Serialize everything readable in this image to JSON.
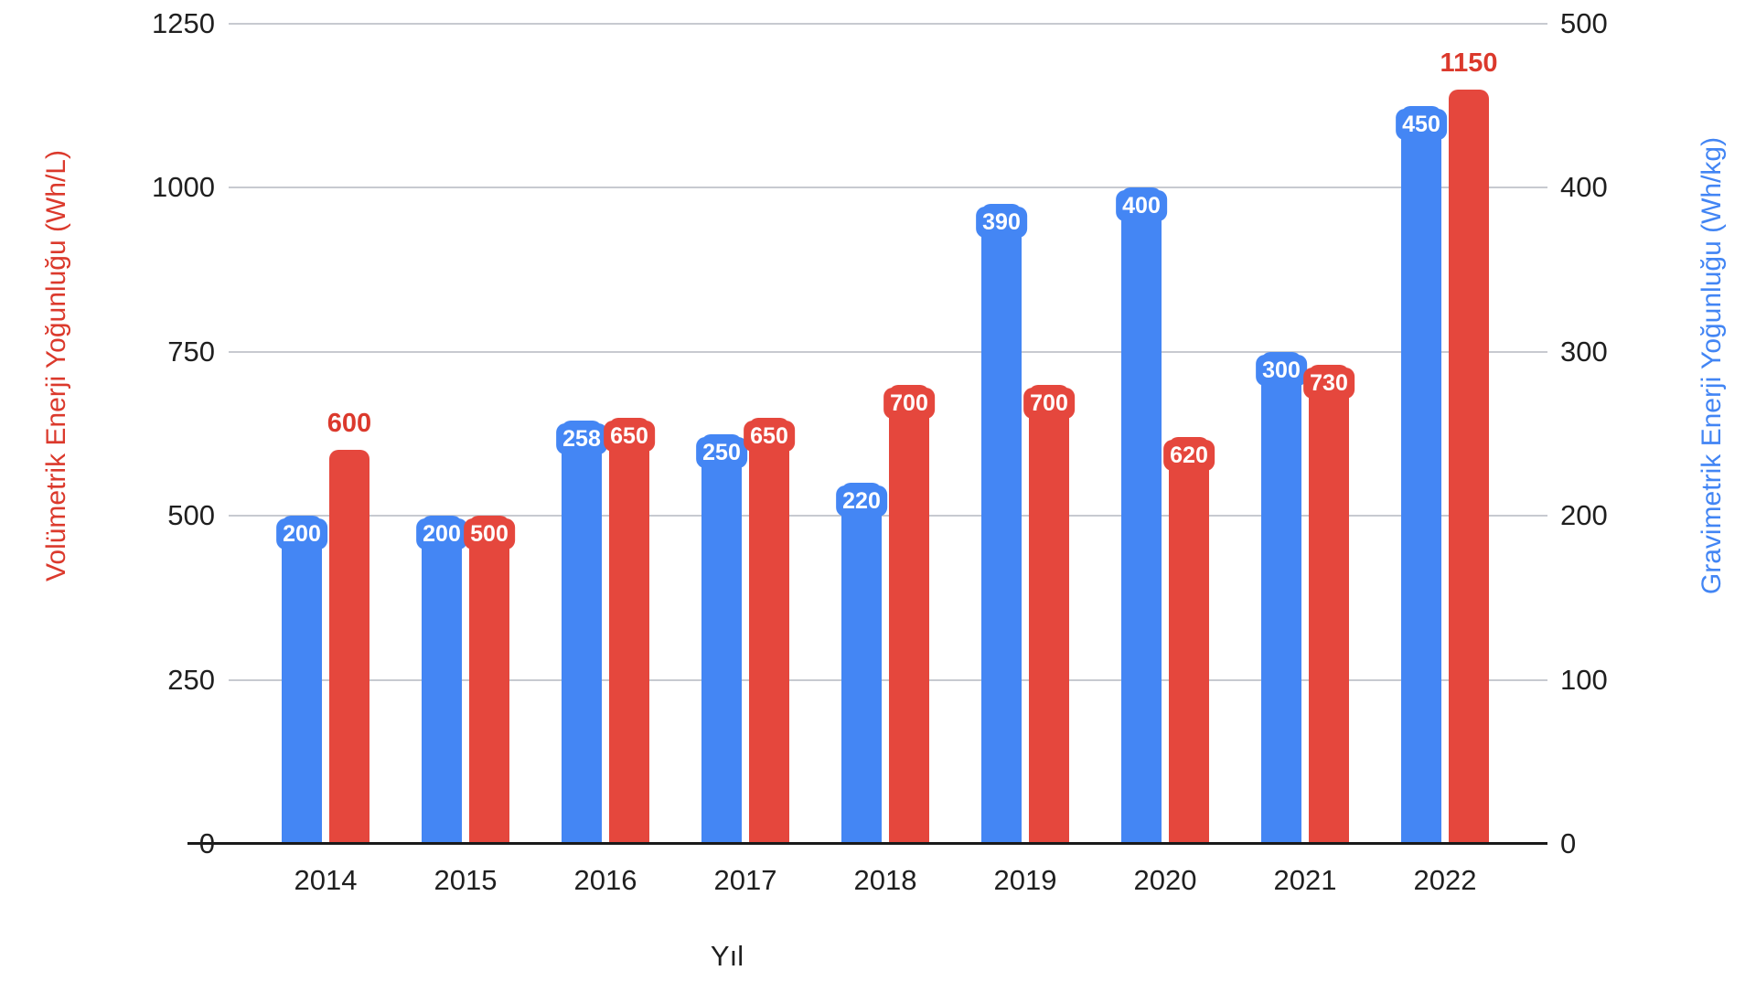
{
  "chart_data": {
    "type": "bar",
    "title": "",
    "categories": [
      "2014",
      "2015",
      "2016",
      "2017",
      "2018",
      "2019",
      "2020",
      "2021",
      "2022"
    ],
    "series": [
      {
        "name": "Gravimetrik Enerji Yoğunluğu (Wh/kg)",
        "axis": "right",
        "color": "#4486f4",
        "values": [
          200,
          200,
          258,
          250,
          220,
          390,
          400,
          300,
          450
        ],
        "label_style": "badge"
      },
      {
        "name": "Volümetrik Enerji Yoğunluğu (Wh/L)",
        "axis": "left",
        "color": "#e5473d",
        "values": [
          600,
          500,
          650,
          650,
          700,
          700,
          620,
          730,
          1150
        ],
        "label_style": "badge",
        "outside_label_categories": [
          "2014",
          "2022"
        ],
        "outside_label_color": "#db392c"
      }
    ],
    "axes": {
      "left": {
        "title": "Volümetrik Enerji Yoğunluğu (Wh/L)",
        "title_color": "#db392c",
        "ticks": [
          0,
          250,
          500,
          750,
          1000,
          1250
        ],
        "min": 0,
        "max": 1250
      },
      "right": {
        "title": "Gravimetrik Enerji Yoğunluğu (Wh/kg)",
        "title_color": "#4285f4",
        "ticks": [
          0,
          100,
          200,
          300,
          400,
          500
        ],
        "min": 0,
        "max": 500
      },
      "x": {
        "title": "Yıl"
      }
    },
    "grid": true,
    "legend": "none",
    "background": "#ffffff"
  }
}
